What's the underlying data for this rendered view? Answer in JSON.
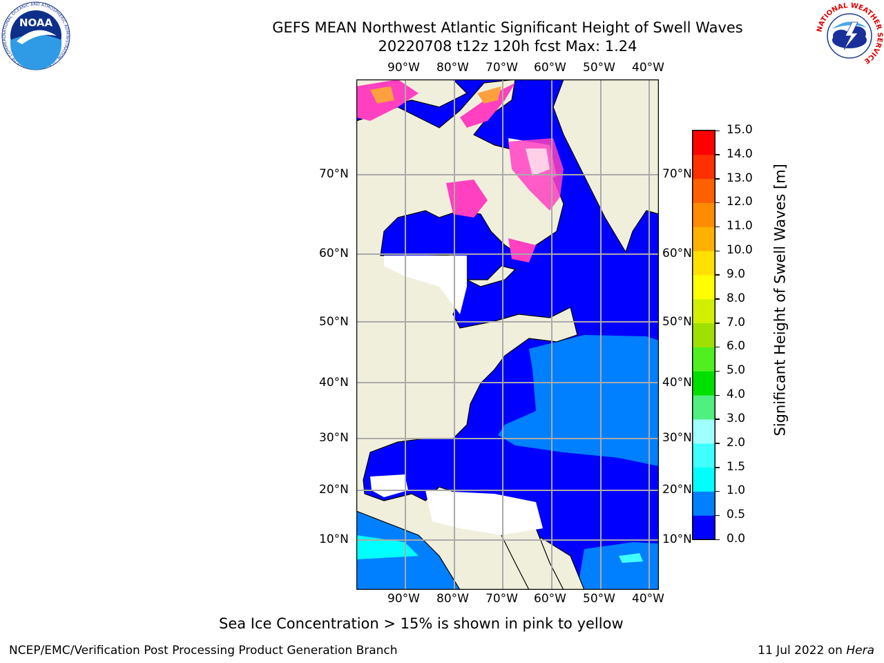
{
  "title_line1": "GEFS MEAN Northwest Atlantic Significant Height of Swell Waves",
  "title_line2": "20220708 t12z 120h fcst   Max: 1.24",
  "lon_labels": [
    "90°W",
    "80°W",
    "70°W",
    "60°W",
    "50°W",
    "40°W"
  ],
  "lat_labels": [
    "70°N",
    "60°N",
    "50°N",
    "40°N",
    "30°N",
    "20°N",
    "10°N"
  ],
  "colorbar": {
    "label": "Significant Height of Swell Waves [m]",
    "ticks": [
      "0.0",
      "0.5",
      "1.0",
      "1.5",
      "2.0",
      "3.0",
      "4.0",
      "5.0",
      "6.0",
      "7.0",
      "8.0",
      "9.0",
      "10.0",
      "11.0",
      "12.0",
      "13.0",
      "14.0",
      "15.0"
    ],
    "colors": [
      "#0000ff",
      "#0080ff",
      "#00ffff",
      "#40ffff",
      "#a0ffff",
      "#50f080",
      "#00e000",
      "#50f020",
      "#a0e000",
      "#d0f000",
      "#ffff00",
      "#ffe000",
      "#ffb000",
      "#ff8c00",
      "#ff6000",
      "#ff3000",
      "#ff0000"
    ]
  },
  "note": "Sea Ice Concentration > 15% is shown in pink to yellow",
  "footer_left": "NCEP/EMC/Verification Post Processing Product Generation Branch",
  "footer_date": "11 Jul 2022 on ",
  "footer_host": "Hera",
  "noaa_logo_text": "NOAA",
  "noaa_ring_text": "NATIONAL OCEANIC AND ATMOSPHERIC ADMINISTRATION · U.S. DEPARTMENT OF COMMERCE",
  "nws_ring_text": "NATIONAL WEATHER SERVICE"
}
